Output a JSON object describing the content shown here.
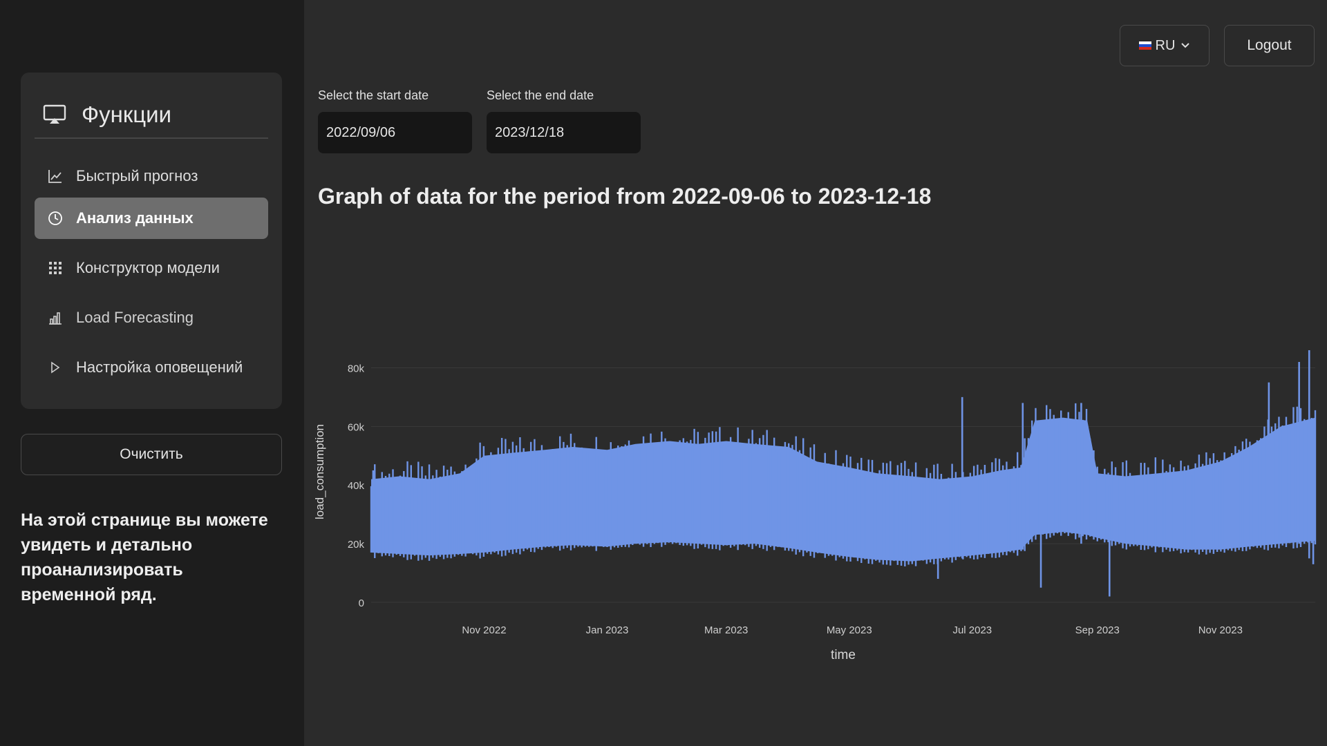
{
  "sidebar": {
    "title": "Функции",
    "items": [
      {
        "label": "Быстрый прогноз",
        "icon": "line-chart-icon"
      },
      {
        "label": "Анализ данных",
        "icon": "clock-icon",
        "active": true
      },
      {
        "label": "Конструктор модели",
        "icon": "grid-icon"
      },
      {
        "label": "Load Forecasting",
        "icon": "bar-chart-icon"
      },
      {
        "label": "Настройка оповещений",
        "icon": "play-icon"
      }
    ],
    "clear_label": "Очистить",
    "description": "На этой странице вы можете увидеть и детально проанализировать временной ряд."
  },
  "header": {
    "lang_label": "RU",
    "logout_label": "Logout"
  },
  "dates": {
    "start_label": "Select the start date",
    "start_value": "2022/09/06",
    "end_label": "Select the end date",
    "end_value": "2023/12/18"
  },
  "graph_title": "Graph of data for the period from 2022-09-06 to 2023-12-18",
  "chart_data": {
    "type": "area",
    "xlabel": "time",
    "ylabel": "load_consumption",
    "x_range": [
      "2022-09-06",
      "2023-12-18"
    ],
    "ylim": [
      0,
      90000
    ],
    "y_ticks": [
      {
        "value": 0,
        "label": "0"
      },
      {
        "value": 20000,
        "label": "20k"
      },
      {
        "value": 40000,
        "label": "40k"
      },
      {
        "value": 60000,
        "label": "60k"
      },
      {
        "value": 80000,
        "label": "80k"
      }
    ],
    "x_ticks": [
      {
        "date": "2022-11-01",
        "label": "Nov 2022"
      },
      {
        "date": "2023-01-01",
        "label": "Jan 2023"
      },
      {
        "date": "2023-03-01",
        "label": "Mar 2023"
      },
      {
        "date": "2023-05-01",
        "label": "May 2023"
      },
      {
        "date": "2023-07-01",
        "label": "Jul 2023"
      },
      {
        "date": "2023-09-01",
        "label": "Sep 2023"
      },
      {
        "date": "2023-11-01",
        "label": "Nov 2023"
      }
    ],
    "series": [
      {
        "color": "#6f94e6",
        "points": [
          {
            "date": "2022-09-06",
            "min": 17000,
            "max": 42000
          },
          {
            "date": "2022-09-20",
            "min": 16500,
            "max": 43000
          },
          {
            "date": "2022-10-05",
            "min": 16000,
            "max": 42000
          },
          {
            "date": "2022-10-20",
            "min": 16500,
            "max": 44000
          },
          {
            "date": "2022-11-01",
            "min": 17000,
            "max": 50000
          },
          {
            "date": "2022-11-15",
            "min": 18000,
            "max": 51000
          },
          {
            "date": "2022-12-01",
            "min": 19000,
            "max": 52000
          },
          {
            "date": "2022-12-15",
            "min": 19500,
            "max": 53000
          },
          {
            "date": "2023-01-01",
            "min": 19000,
            "max": 52000
          },
          {
            "date": "2023-01-15",
            "min": 20000,
            "max": 54000
          },
          {
            "date": "2023-02-01",
            "min": 20500,
            "max": 55000
          },
          {
            "date": "2023-02-15",
            "min": 20000,
            "max": 54000
          },
          {
            "date": "2023-03-01",
            "min": 19500,
            "max": 55000
          },
          {
            "date": "2023-03-15",
            "min": 20000,
            "max": 54000
          },
          {
            "date": "2023-04-01",
            "min": 18500,
            "max": 53000
          },
          {
            "date": "2023-04-15",
            "min": 17000,
            "max": 48000
          },
          {
            "date": "2023-05-01",
            "min": 15500,
            "max": 46000
          },
          {
            "date": "2023-05-15",
            "min": 14500,
            "max": 44000
          },
          {
            "date": "2023-06-01",
            "min": 14000,
            "max": 43000
          },
          {
            "date": "2023-06-15",
            "min": 15000,
            "max": 42000
          },
          {
            "date": "2023-07-01",
            "min": 16000,
            "max": 43000
          },
          {
            "date": "2023-07-15",
            "min": 17000,
            "max": 45000
          },
          {
            "date": "2023-07-25",
            "min": 18000,
            "max": 46000
          },
          {
            "date": "2023-08-01",
            "min": 23000,
            "max": 62000
          },
          {
            "date": "2023-08-15",
            "min": 24000,
            "max": 63000
          },
          {
            "date": "2023-08-27",
            "min": 23000,
            "max": 62000
          },
          {
            "date": "2023-09-01",
            "min": 22000,
            "max": 44000
          },
          {
            "date": "2023-09-15",
            "min": 20000,
            "max": 43000
          },
          {
            "date": "2023-10-01",
            "min": 19000,
            "max": 44000
          },
          {
            "date": "2023-10-15",
            "min": 18000,
            "max": 45000
          },
          {
            "date": "2023-11-01",
            "min": 18000,
            "max": 48000
          },
          {
            "date": "2023-11-15",
            "min": 19000,
            "max": 53000
          },
          {
            "date": "2023-12-01",
            "min": 20000,
            "max": 60000
          },
          {
            "date": "2023-12-18",
            "min": 21000,
            "max": 63000
          }
        ],
        "spikes": [
          {
            "date": "2022-09-07",
            "low": 17000,
            "high": 45000
          },
          {
            "date": "2023-06-14",
            "low": 8000,
            "high": 42000
          },
          {
            "date": "2023-06-26",
            "low": 15000,
            "high": 70000
          },
          {
            "date": "2023-07-26",
            "low": 18000,
            "high": 68000
          },
          {
            "date": "2023-08-04",
            "low": 5000,
            "high": 60000
          },
          {
            "date": "2023-08-24",
            "low": 20000,
            "high": 68000
          },
          {
            "date": "2023-09-07",
            "low": 2000,
            "high": 40000
          },
          {
            "date": "2023-11-25",
            "low": 20000,
            "high": 75000
          },
          {
            "date": "2023-12-10",
            "low": 20000,
            "high": 82000
          },
          {
            "date": "2023-12-15",
            "low": 15000,
            "high": 86000
          },
          {
            "date": "2023-12-17",
            "low": 13000,
            "high": 60000
          }
        ]
      }
    ]
  }
}
